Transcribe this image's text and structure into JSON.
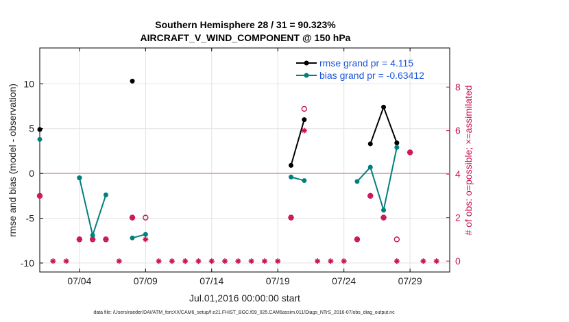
{
  "chart_data": {
    "type": "scatter",
    "title": "Southern Hemisphere 28 / 31 = 90.323%",
    "subtitle": "AIRCRAFT_V_WIND_COMPONENT @ 150 hPa",
    "xlabel": "Jul.01,2016 00:00:00 start",
    "ylabel": "rmse and bias (model - observation)",
    "y2label": "# of obs: o=possible; ×=assimilated",
    "footer": "data file: /Users/raeder/DAI/ATM_forcXX/CAM6_setup/f.e21.FHIST_BGC.f09_025.CAM6assim.011/Diags_NTrS_2016-07/obs_diag_output.nc",
    "xlim": [
      1,
      32
    ],
    "ylim": [
      -11,
      14
    ],
    "y2lim": [
      -0.5,
      9.8
    ],
    "xticks": [
      4,
      9,
      14,
      19,
      24,
      29
    ],
    "xtick_labels": [
      "07/04",
      "07/09",
      "07/14",
      "07/19",
      "07/24",
      "07/29"
    ],
    "yticks": [
      -10,
      -5,
      0,
      5,
      10
    ],
    "y2ticks": [
      0,
      2,
      4,
      6,
      8
    ],
    "x": [
      1.0,
      2.0,
      3.0,
      4.0,
      5.0,
      6.0,
      7.0,
      8.0,
      9.0,
      10.0,
      11.0,
      12.0,
      13.0,
      14.0,
      15.0,
      16.0,
      17.0,
      18.0,
      19.0,
      20.0,
      21.0,
      22.0,
      23.0,
      24.0,
      25.0,
      26.0,
      27.0,
      28.0,
      29.0,
      30.0,
      31.0
    ],
    "series": [
      {
        "name": "rmse grand pr = 4.115",
        "color": "#000000",
        "values": [
          4.9,
          null,
          null,
          -0.5,
          null,
          null,
          null,
          10.3,
          null,
          null,
          null,
          null,
          null,
          null,
          null,
          null,
          null,
          null,
          null,
          0.9,
          6.0,
          null,
          null,
          null,
          null,
          3.3,
          7.4,
          3.4,
          null,
          null,
          null
        ]
      },
      {
        "name": "bias grand pr = -0.63412",
        "color": "#007f7f",
        "values": [
          3.8,
          null,
          null,
          -0.5,
          -6.9,
          -2.4,
          null,
          -7.2,
          -6.8,
          null,
          null,
          null,
          null,
          null,
          null,
          null,
          null,
          null,
          null,
          -0.4,
          -0.8,
          null,
          null,
          null,
          -0.9,
          0.7,
          -4.1,
          2.9,
          null,
          null,
          null
        ]
      },
      {
        "name": "possible",
        "color": "#cc1155",
        "values": [
          3,
          0,
          0,
          1,
          1,
          1,
          0,
          2,
          2,
          0,
          0,
          0,
          0,
          0,
          0,
          0,
          0,
          0,
          0,
          2,
          7,
          0,
          0,
          0,
          1,
          3,
          2,
          1,
          5,
          0,
          0
        ]
      },
      {
        "name": "assimilated",
        "color": "#cc1155",
        "values": [
          3,
          0,
          0,
          1,
          1,
          1,
          0,
          2,
          1,
          0,
          0,
          0,
          0,
          0,
          0,
          0,
          0,
          0,
          0,
          2,
          6,
          0,
          0,
          0,
          1,
          3,
          2,
          0,
          5,
          0,
          0
        ]
      }
    ],
    "grid": true,
    "legend": "top-right"
  }
}
